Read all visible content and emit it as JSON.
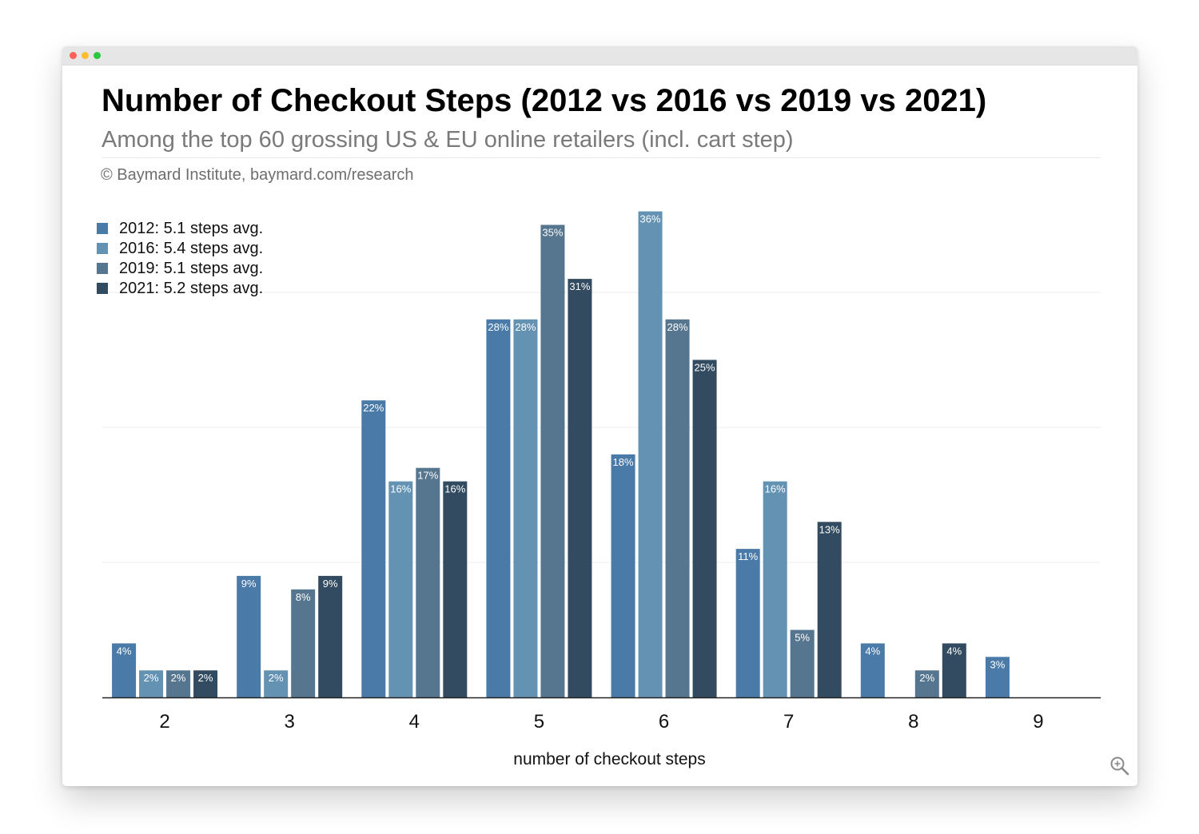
{
  "chart_data": {
    "type": "bar",
    "title": "Number of Checkout Steps (2012 vs 2016 vs 2019 vs 2021)",
    "subtitle": "Among the top 60 grossing US & EU online retailers (incl. cart step)",
    "credit": "© Baymard Institute, baymard.com/research",
    "xlabel": "number of checkout steps",
    "ylabel": "",
    "categories": [
      "2",
      "3",
      "4",
      "5",
      "6",
      "7",
      "8",
      "9"
    ],
    "ylim": [
      0,
      37
    ],
    "grid": true,
    "legend_position": "top-left",
    "series": [
      {
        "name": "2012: 5.1 steps avg.",
        "color": "#4a7aa7",
        "values": [
          4,
          9,
          22,
          28,
          18,
          11,
          4,
          3
        ]
      },
      {
        "name": "2016: 5.4 steps avg.",
        "color": "#6492b3",
        "values": [
          2,
          2,
          16,
          28,
          36,
          16,
          0,
          0
        ]
      },
      {
        "name": "2019: 5.1 steps avg.",
        "color": "#56758e",
        "values": [
          2,
          8,
          17,
          35,
          28,
          5,
          2,
          0
        ]
      },
      {
        "name": "2021: 5.2 steps avg.",
        "color": "#324b61",
        "values": [
          2,
          9,
          16,
          31,
          25,
          13,
          4,
          0
        ]
      }
    ],
    "value_suffix": "%"
  }
}
